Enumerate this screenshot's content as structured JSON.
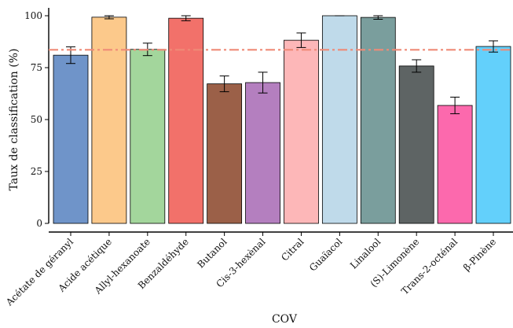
{
  "chart_data": {
    "type": "bar",
    "xlabel": "COV",
    "ylabel": "Taux de classification (%)",
    "ylim": [
      0,
      100
    ],
    "yticks": [
      0,
      25,
      50,
      75,
      100
    ],
    "grid": false,
    "categories": [
      "Acétate de géranyl",
      "Acide acétique",
      "Allyl-hexanoate",
      "Benzaldéhyde",
      "Butanol",
      "Cis-3-hexènal",
      "Citral",
      "Guaïacol",
      "Linalool",
      "(S)-Limonène",
      "Trans-2-octénal",
      "β-Pinène"
    ],
    "values": [
      81,
      99.3,
      83.8,
      98.8,
      67.2,
      67.8,
      88.2,
      100,
      99.2,
      75.8,
      56.8,
      85.2
    ],
    "error": [
      4,
      0.8,
      3,
      1.2,
      3.8,
      5,
      3.5,
      0,
      0.9,
      3,
      4,
      2.7
    ],
    "colors": [
      "#6f94c9",
      "#fcc98b",
      "#a3d69c",
      "#f2716a",
      "#9b6048",
      "#b47fbf",
      "#fdb7b8",
      "#bfdaea",
      "#7a9e9d",
      "#5e6464",
      "#fc69ad",
      "#63d0fb"
    ],
    "reference_line": {
      "value": 83.6,
      "color": "#ef8a77",
      "style": "dash-dot"
    }
  }
}
